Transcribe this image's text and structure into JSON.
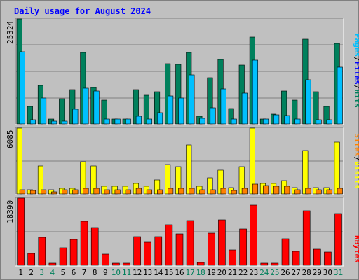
{
  "title": "Daily usage for August 2024",
  "colors": {
    "background": "#c0c0c0",
    "title_text": "#0000ff",
    "hits": "#00805c",
    "files": "#00c0ff",
    "pages": "#00c0ff",
    "visits": "#ffff00",
    "sites": "#ff8000",
    "kbytes": "#ff0000",
    "weekday_label": "#000000",
    "weekend_label": "#00805c"
  },
  "legends": {
    "top": {
      "pages": "Pages",
      "sep1": "/",
      "files": "Files",
      "sep2": "/",
      "hits": "Hits"
    },
    "middle": {
      "sites": "Sites",
      "sep": "/",
      "visits": "Visits"
    },
    "bottom": {
      "kbytes": "KBytes"
    }
  },
  "chart_data": {
    "type": "bar",
    "title": "Daily usage for August 2024",
    "categories": [
      "1",
      "2",
      "3",
      "4",
      "5",
      "6",
      "7",
      "8",
      "9",
      "10",
      "11",
      "12",
      "13",
      "14",
      "15",
      "16",
      "17",
      "18",
      "19",
      "20",
      "21",
      "22",
      "23",
      "24",
      "25",
      "26",
      "27",
      "28",
      "29",
      "30",
      "31"
    ],
    "weekend_days": [
      "3",
      "4",
      "10",
      "11",
      "17",
      "18",
      "24",
      "25",
      "31"
    ],
    "panels": [
      {
        "name": "top",
        "max_label": "25324",
        "ylim": [
          0,
          25324
        ],
        "series": [
          {
            "name": "Hits",
            "values": [
              25324,
              4300,
              9300,
              1100,
              6000,
              8300,
              17200,
              8700,
              5800,
              1200,
              1200,
              8300,
              7000,
              7800,
              14500,
              14300,
              17200,
              1800,
              11100,
              15500,
              3700,
              14100,
              21000,
              1200,
              2400,
              8000,
              5800,
              20500,
              7800,
              4300,
              19400
            ]
          },
          {
            "name": "Files",
            "values": [
              17400,
              1000,
              6300,
              700,
              700,
              3500,
              8600,
              7900,
              1100,
              1200,
              1200,
              1800,
              1200,
              2700,
              6800,
              6300,
              11900,
              1300,
              3800,
              8400,
              1200,
              7400,
              15400,
              1200,
              2200,
              2000,
              1200,
              10700,
              1000,
              1000,
              13600
            ]
          },
          {
            "name": "Pages",
            "values": [
              0,
              0,
              0,
              0,
              0,
              0,
              0,
              0,
              0,
              0,
              0,
              0,
              0,
              0,
              0,
              0,
              0,
              0,
              0,
              0,
              0,
              0,
              0,
              0,
              0,
              0,
              0,
              0,
              0,
              0,
              0
            ]
          }
        ]
      },
      {
        "name": "middle",
        "max_label": "6085",
        "ylim": [
          0,
          6085
        ],
        "series": [
          {
            "name": "Visits",
            "values": [
              6085,
              400,
              2600,
              400,
              500,
              500,
              3000,
              2600,
              700,
              700,
              700,
              1000,
              700,
              1300,
              2700,
              2500,
              4500,
              700,
              1500,
              2200,
              600,
              2500,
              6085,
              1000,
              1000,
              1200,
              600,
              4000,
              600,
              600,
              4800
            ]
          },
          {
            "name": "Sites",
            "values": [
              400,
              300,
              400,
              200,
              400,
              400,
              500,
              500,
              400,
              400,
              400,
              500,
              400,
              400,
              500,
              500,
              500,
              400,
              400,
              500,
              300,
              500,
              900,
              800,
              700,
              700,
              400,
              500,
              400,
              400,
              500
            ]
          }
        ]
      },
      {
        "name": "bottom",
        "max_label": "18390",
        "ylim": [
          0,
          18390
        ],
        "series": [
          {
            "name": "KBytes",
            "values": [
              18390,
              3300,
              7700,
              600,
              4700,
              7000,
              12000,
              10400,
              3100,
              600,
              600,
              7900,
              6400,
              7900,
              11200,
              8700,
              12300,
              800,
              8900,
              12400,
              4200,
              9900,
              16400,
              600,
              600,
              7300,
              3800,
              15000,
              4500,
              3600,
              14200
            ]
          }
        ]
      }
    ]
  }
}
